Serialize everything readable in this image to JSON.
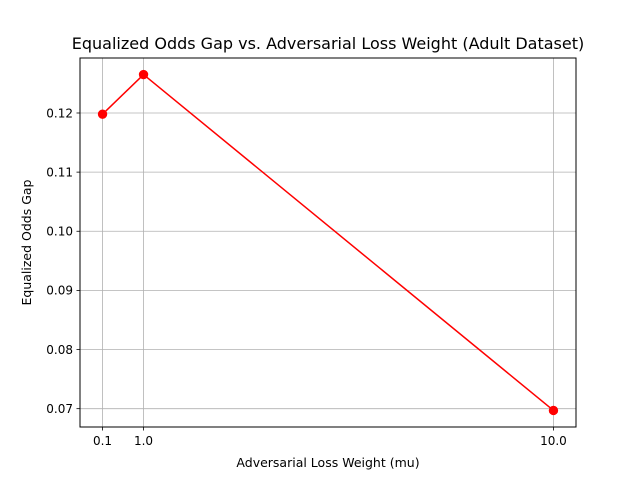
{
  "chart_data": {
    "type": "line",
    "title": "Equalized Odds Gap vs. Adversarial Loss Weight (Adult Dataset)",
    "xlabel": "Adversarial Loss Weight (mu)",
    "ylabel": "Equalized Odds Gap",
    "x": [
      0.1,
      1.0,
      10.0
    ],
    "x_tick_labels": [
      "0.1",
      "1.0",
      "10.0"
    ],
    "xlim": [
      -0.395,
      10.495
    ],
    "series": [
      {
        "values": [
          0.1198,
          0.1265,
          0.0697
        ],
        "color": "#ff0000",
        "marker": "circle"
      }
    ],
    "y_ticks": [
      0.07,
      0.08,
      0.09,
      0.1,
      0.11,
      0.12
    ],
    "y_tick_labels": [
      "0.07",
      "0.08",
      "0.09",
      "0.10",
      "0.11",
      "0.12"
    ],
    "ylim": [
      0.0669,
      0.1293
    ],
    "grid": true
  }
}
